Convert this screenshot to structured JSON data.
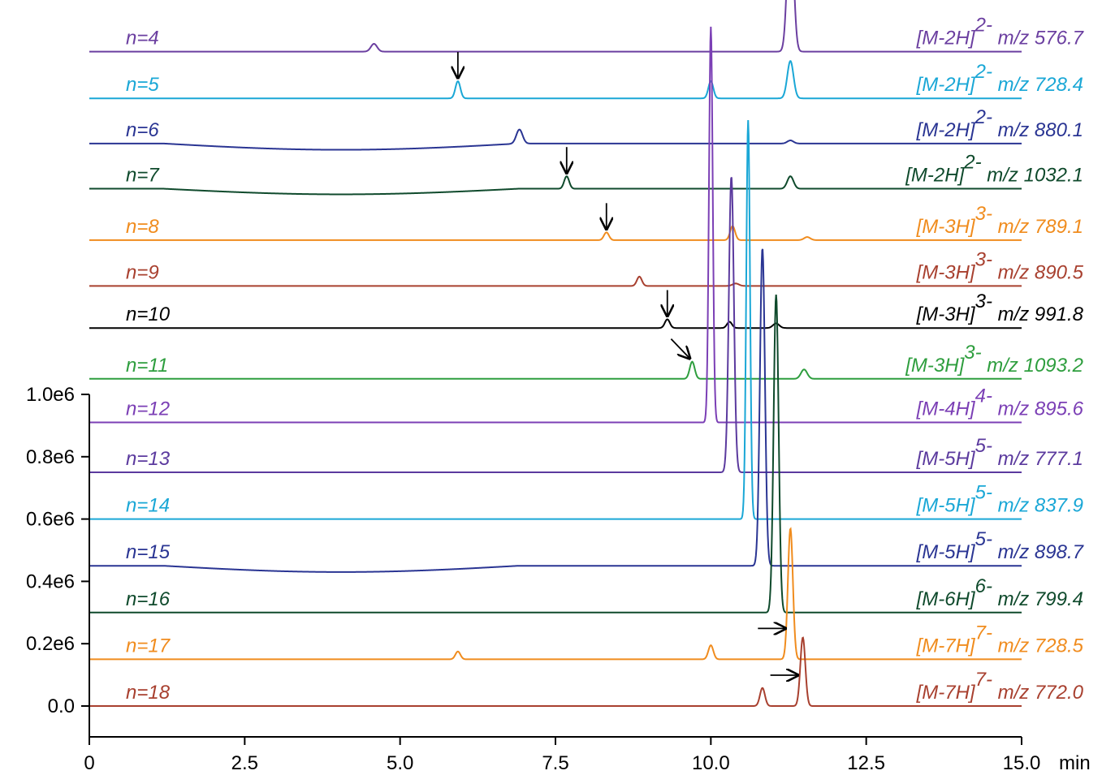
{
  "chart_data": {
    "type": "line",
    "x_unit": "min",
    "xlim": [
      0,
      15
    ],
    "ylim": [
      0,
      1000000
    ],
    "x_ticks": [
      {
        "value": 0,
        "label": "0"
      },
      {
        "value": 2.5,
        "label": "2.5"
      },
      {
        "value": 5,
        "label": "5.0"
      },
      {
        "value": 7.5,
        "label": "7.5"
      },
      {
        "value": 10,
        "label": "10.0"
      },
      {
        "value": 12.5,
        "label": "12.5"
      },
      {
        "value": 15,
        "label": "15.0"
      }
    ],
    "y_ticks": [
      {
        "value": 0,
        "label": "0.0"
      },
      {
        "value": 200000,
        "label": "0.2e6"
      },
      {
        "value": 400000,
        "label": "0.4e6"
      },
      {
        "value": 600000,
        "label": "0.6e6"
      },
      {
        "value": 800000,
        "label": "0.8e6"
      },
      {
        "value": 1000000,
        "label": "1.0e6"
      }
    ],
    "grid": false,
    "series": [
      {
        "name": "n=4",
        "ion": "[M-2H]",
        "charge": "2-",
        "mz": "m/z 576.7",
        "color": "#6b3fa0",
        "offset": 2100000,
        "bump": 0,
        "peaks": [
          {
            "t": 4.58,
            "h": 25000,
            "w": 0.05
          },
          {
            "t": 11.28,
            "h": 450000,
            "w": 0.05
          }
        ]
      },
      {
        "name": "n=5",
        "ion": "[M-2H]",
        "charge": "2-",
        "mz": "m/z 728.4",
        "color": "#1aa7d6",
        "offset": 1950000,
        "bump": 0,
        "peaks": [
          {
            "t": 5.93,
            "h": 55000,
            "w": 0.04
          },
          {
            "t": 10.0,
            "h": 55000,
            "w": 0.04
          },
          {
            "t": 11.28,
            "h": 120000,
            "w": 0.05
          }
        ],
        "arrow": {
          "t": 5.93,
          "dir": "down"
        }
      },
      {
        "name": "n=6",
        "ion": "[M-2H]",
        "charge": "2-",
        "mz": "m/z 880.1",
        "color": "#2a3593",
        "offset": 1805000,
        "bump": -20000,
        "peaks": [
          {
            "t": 6.92,
            "h": 45000,
            "w": 0.05
          },
          {
            "t": 11.28,
            "h": 10000,
            "w": 0.05
          }
        ]
      },
      {
        "name": "n=7",
        "ion": "[M-2H]",
        "charge": "2-",
        "mz": "m/z 1032.1",
        "color": "#0f4a2c",
        "offset": 1660000,
        "bump": -18000,
        "peaks": [
          {
            "t": 7.68,
            "h": 40000,
            "w": 0.04
          },
          {
            "t": 11.28,
            "h": 40000,
            "w": 0.05
          }
        ],
        "arrow": {
          "t": 7.68,
          "dir": "down"
        }
      },
      {
        "name": "n=8",
        "ion": "[M-3H]",
        "charge": "3-",
        "mz": "m/z 789.1",
        "color": "#f08c1e",
        "offset": 1495000,
        "bump": 0,
        "peaks": [
          {
            "t": 8.32,
            "h": 25000,
            "w": 0.04
          },
          {
            "t": 10.35,
            "h": 45000,
            "w": 0.04
          },
          {
            "t": 11.55,
            "h": 10000,
            "w": 0.05
          }
        ],
        "arrow": {
          "t": 8.32,
          "dir": "down"
        }
      },
      {
        "name": "n=9",
        "ion": "[M-3H]",
        "charge": "3-",
        "mz": "m/z 890.5",
        "color": "#a8402f",
        "offset": 1348000,
        "bump": 0,
        "peaks": [
          {
            "t": 8.85,
            "h": 30000,
            "w": 0.04
          },
          {
            "t": 10.4,
            "h": 8000,
            "w": 0.05
          }
        ]
      },
      {
        "name": "n=10",
        "ion": "[M-3H]",
        "charge": "3-",
        "mz": "m/z 991.8",
        "color": "#000000",
        "offset": 1213000,
        "bump": 0,
        "peaks": [
          {
            "t": 9.3,
            "h": 28000,
            "w": 0.04
          },
          {
            "t": 10.3,
            "h": 20000,
            "w": 0.04
          },
          {
            "t": 11.05,
            "h": 15000,
            "w": 0.05
          }
        ],
        "arrow": {
          "t": 9.3,
          "dir": "down"
        }
      },
      {
        "name": "n=11",
        "ion": "[M-3H]",
        "charge": "3-",
        "mz": "m/z 1093.2",
        "color": "#2e9e3e",
        "offset": 1050000,
        "bump": 0,
        "peaks": [
          {
            "t": 9.7,
            "h": 55000,
            "w": 0.04
          },
          {
            "t": 11.5,
            "h": 30000,
            "w": 0.05
          }
        ],
        "arrow": {
          "t": 9.7,
          "dir": "diagonal"
        }
      },
      {
        "name": "n=12",
        "ion": "[M-4H]",
        "charge": "4-",
        "mz": "m/z 895.6",
        "color": "#7b3fb5",
        "offset": 910000,
        "bump": 0,
        "peaks": [
          {
            "t": 10.0,
            "h": 1270000,
            "w": 0.03
          }
        ]
      },
      {
        "name": "n=13",
        "ion": "[M-5H]",
        "charge": "5-",
        "mz": "m/z 777.1",
        "color": "#5b3a9e",
        "offset": 750000,
        "bump": 0,
        "peaks": [
          {
            "t": 10.33,
            "h": 950000,
            "w": 0.04
          }
        ]
      },
      {
        "name": "n=14",
        "ion": "[M-5H]",
        "charge": "5-",
        "mz": "m/z 837.9",
        "color": "#1aa7d6",
        "offset": 600000,
        "bump": 0,
        "peaks": [
          {
            "t": 10.6,
            "h": 1280000,
            "w": 0.03
          }
        ]
      },
      {
        "name": "n=15",
        "ion": "[M-5H]",
        "charge": "5-",
        "mz": "m/z 898.7",
        "color": "#2a3593",
        "offset": 450000,
        "bump": -20000,
        "peaks": [
          {
            "t": 10.83,
            "h": 1020000,
            "w": 0.04
          }
        ]
      },
      {
        "name": "n=16",
        "ion": "[M-6H]",
        "charge": "6-",
        "mz": "m/z 799.4",
        "color": "#0f4a2c",
        "offset": 300000,
        "bump": 0,
        "peaks": [
          {
            "t": 11.05,
            "h": 1020000,
            "w": 0.04
          }
        ]
      },
      {
        "name": "n=17",
        "ion": "[M-7H]",
        "charge": "7-",
        "mz": "m/z 728.5",
        "color": "#f08c1e",
        "offset": 150000,
        "bump": 0,
        "peaks": [
          {
            "t": 5.93,
            "h": 25000,
            "w": 0.04
          },
          {
            "t": 10.0,
            "h": 45000,
            "w": 0.04
          },
          {
            "t": 11.28,
            "h": 420000,
            "w": 0.04
          }
        ],
        "arrow": {
          "t": 11.28,
          "dir": "right"
        }
      },
      {
        "name": "n=18",
        "ion": "[M-7H]",
        "charge": "7-",
        "mz": "m/z 772.0",
        "color": "#a8402f",
        "offset": 0,
        "bump": 0,
        "peaks": [
          {
            "t": 10.83,
            "h": 58000,
            "w": 0.04
          },
          {
            "t": 11.48,
            "h": 220000,
            "w": 0.04
          }
        ],
        "arrow": {
          "t": 11.48,
          "dir": "right"
        }
      }
    ]
  }
}
